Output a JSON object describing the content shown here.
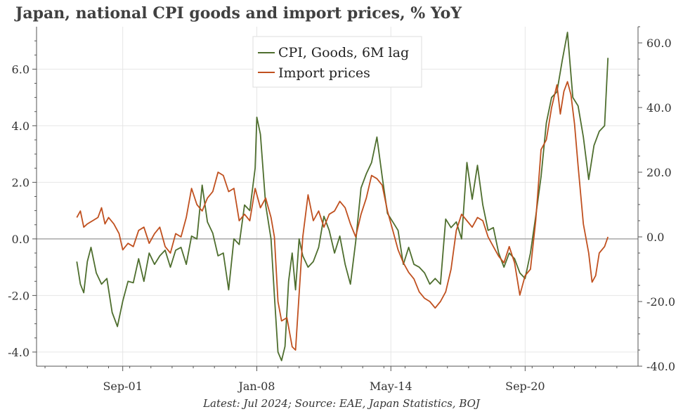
{
  "title": "Japan, national CPI goods and import prices, % YoY",
  "footer": "Latest: Jul 2024; Source: EAE, Japan Statistics, BOJ",
  "chart_data": {
    "type": "line",
    "title": "Japan, national CPI goods and import prices, % YoY",
    "x_start": 1999.5,
    "x_end": 2024.58,
    "xlim": [
      1997.6,
      2026.0
    ],
    "x_ticks": [
      {
        "value": 2001.67,
        "label": "Sep-01"
      },
      {
        "value": 2008.0,
        "label": "Jan-08"
      },
      {
        "value": 2014.33,
        "label": "May-14"
      },
      {
        "value": 2020.67,
        "label": "Sep-20"
      }
    ],
    "ylim_left": [
      -4.5,
      7.5
    ],
    "ylim_right": [
      -40.0,
      65.0
    ],
    "yticks_left": [
      {
        "value": 6.0,
        "label": "6.0"
      },
      {
        "value": 4.0,
        "label": "4.0"
      },
      {
        "value": 2.0,
        "label": "2.0"
      },
      {
        "value": 0.0,
        "label": "0.0"
      },
      {
        "value": -2.0,
        "label": "-2.0"
      },
      {
        "value": -4.0,
        "label": "-4.0"
      }
    ],
    "yticks_right": [
      {
        "value": 60.0,
        "label": "60.0"
      },
      {
        "value": 40.0,
        "label": "40.0"
      },
      {
        "value": 20.0,
        "label": "20.0"
      },
      {
        "value": 0.0,
        "label": "0.0"
      },
      {
        "value": -20.0,
        "label": "-20.0"
      },
      {
        "value": -40.0,
        "label": "-40.0"
      }
    ],
    "grid": true,
    "legend_position": "top-center",
    "series": [
      {
        "name": "CPI, Goods, 6M lag",
        "axis": "left",
        "color": "#4e6e2e",
        "points": [
          [
            1999.5,
            -0.8
          ],
          [
            1999.67,
            -1.6
          ],
          [
            1999.83,
            -1.9
          ],
          [
            2000.0,
            -0.8
          ],
          [
            2000.17,
            -0.3
          ],
          [
            2000.42,
            -1.2
          ],
          [
            2000.67,
            -1.6
          ],
          [
            2000.92,
            -1.4
          ],
          [
            2001.17,
            -2.6
          ],
          [
            2001.42,
            -3.1
          ],
          [
            2001.67,
            -2.2
          ],
          [
            2001.92,
            -1.5
          ],
          [
            2002.17,
            -1.55
          ],
          [
            2002.42,
            -0.7
          ],
          [
            2002.67,
            -1.5
          ],
          [
            2002.92,
            -0.5
          ],
          [
            2003.17,
            -0.9
          ],
          [
            2003.42,
            -0.6
          ],
          [
            2003.67,
            -0.4
          ],
          [
            2003.92,
            -1.0
          ],
          [
            2004.17,
            -0.4
          ],
          [
            2004.42,
            -0.3
          ],
          [
            2004.67,
            -0.9
          ],
          [
            2004.92,
            0.1
          ],
          [
            2005.17,
            0.0
          ],
          [
            2005.42,
            1.9
          ],
          [
            2005.67,
            0.6
          ],
          [
            2005.92,
            0.2
          ],
          [
            2006.17,
            -0.6
          ],
          [
            2006.42,
            -0.5
          ],
          [
            2006.67,
            -1.8
          ],
          [
            2006.92,
            0.0
          ],
          [
            2007.17,
            -0.2
          ],
          [
            2007.42,
            1.2
          ],
          [
            2007.67,
            1.0
          ],
          [
            2007.92,
            2.5
          ],
          [
            2008.0,
            4.3
          ],
          [
            2008.17,
            3.7
          ],
          [
            2008.42,
            1.2
          ],
          [
            2008.67,
            0.0
          ],
          [
            2008.83,
            -2.0
          ],
          [
            2009.0,
            -4.0
          ],
          [
            2009.17,
            -4.3
          ],
          [
            2009.33,
            -3.8
          ],
          [
            2009.5,
            -1.5
          ],
          [
            2009.67,
            -0.5
          ],
          [
            2009.83,
            -1.8
          ],
          [
            2010.0,
            0.0
          ],
          [
            2010.17,
            -0.6
          ],
          [
            2010.42,
            -1.0
          ],
          [
            2010.67,
            -0.8
          ],
          [
            2010.92,
            -0.3
          ],
          [
            2011.17,
            0.8
          ],
          [
            2011.42,
            0.3
          ],
          [
            2011.67,
            -0.5
          ],
          [
            2011.92,
            0.1
          ],
          [
            2012.17,
            -0.9
          ],
          [
            2012.42,
            -1.6
          ],
          [
            2012.67,
            -0.1
          ],
          [
            2012.92,
            1.8
          ],
          [
            2013.17,
            2.3
          ],
          [
            2013.42,
            2.7
          ],
          [
            2013.67,
            3.6
          ],
          [
            2013.92,
            2.2
          ],
          [
            2014.17,
            0.9
          ],
          [
            2014.42,
            0.6
          ],
          [
            2014.67,
            0.3
          ],
          [
            2014.92,
            -0.9
          ],
          [
            2015.17,
            -0.3
          ],
          [
            2015.42,
            -0.9
          ],
          [
            2015.67,
            -1.0
          ],
          [
            2015.92,
            -1.2
          ],
          [
            2016.17,
            -1.6
          ],
          [
            2016.42,
            -1.4
          ],
          [
            2016.67,
            -1.6
          ],
          [
            2016.92,
            0.7
          ],
          [
            2017.17,
            0.4
          ],
          [
            2017.42,
            0.6
          ],
          [
            2017.67,
            0.0
          ],
          [
            2017.92,
            2.7
          ],
          [
            2018.17,
            1.4
          ],
          [
            2018.42,
            2.6
          ],
          [
            2018.67,
            1.2
          ],
          [
            2018.92,
            0.3
          ],
          [
            2019.17,
            0.4
          ],
          [
            2019.42,
            -0.5
          ],
          [
            2019.67,
            -1.0
          ],
          [
            2019.92,
            -0.5
          ],
          [
            2020.17,
            -0.7
          ],
          [
            2020.42,
            -1.2
          ],
          [
            2020.67,
            -1.4
          ],
          [
            2020.92,
            -0.5
          ],
          [
            2021.17,
            0.8
          ],
          [
            2021.42,
            2.2
          ],
          [
            2021.67,
            4.1
          ],
          [
            2021.92,
            5.0
          ],
          [
            2022.17,
            5.2
          ],
          [
            2022.42,
            6.3
          ],
          [
            2022.67,
            7.3
          ],
          [
            2022.92,
            5.0
          ],
          [
            2023.17,
            4.7
          ],
          [
            2023.42,
            3.6
          ],
          [
            2023.67,
            2.1
          ],
          [
            2023.92,
            3.3
          ],
          [
            2024.17,
            3.8
          ],
          [
            2024.42,
            4.0
          ],
          [
            2024.58,
            6.4
          ]
        ]
      },
      {
        "name": "Import prices",
        "axis": "right",
        "color": "#c0501f",
        "points": [
          [
            1999.5,
            6.0
          ],
          [
            1999.67,
            8.0
          ],
          [
            1999.83,
            3.0
          ],
          [
            2000.0,
            4.0
          ],
          [
            2000.25,
            5.0
          ],
          [
            2000.5,
            6.0
          ],
          [
            2000.67,
            9.0
          ],
          [
            2000.83,
            4.0
          ],
          [
            2001.0,
            6.0
          ],
          [
            2001.25,
            4.0
          ],
          [
            2001.5,
            1.0
          ],
          [
            2001.67,
            -4.0
          ],
          [
            2001.92,
            -2.0
          ],
          [
            2002.17,
            -3.0
          ],
          [
            2002.42,
            2.0
          ],
          [
            2002.67,
            3.0
          ],
          [
            2002.92,
            -2.0
          ],
          [
            2003.17,
            1.0
          ],
          [
            2003.42,
            3.0
          ],
          [
            2003.67,
            -3.0
          ],
          [
            2003.92,
            -5.0
          ],
          [
            2004.17,
            1.0
          ],
          [
            2004.42,
            0.0
          ],
          [
            2004.67,
            6.0
          ],
          [
            2004.92,
            15.0
          ],
          [
            2005.17,
            10.0
          ],
          [
            2005.42,
            8.0
          ],
          [
            2005.67,
            12.0
          ],
          [
            2005.92,
            14.0
          ],
          [
            2006.17,
            20.0
          ],
          [
            2006.42,
            19.0
          ],
          [
            2006.67,
            14.0
          ],
          [
            2006.92,
            15.0
          ],
          [
            2007.17,
            5.0
          ],
          [
            2007.42,
            7.0
          ],
          [
            2007.67,
            5.0
          ],
          [
            2007.92,
            15.0
          ],
          [
            2008.17,
            9.0
          ],
          [
            2008.42,
            12.0
          ],
          [
            2008.67,
            6.0
          ],
          [
            2008.83,
            0.0
          ],
          [
            2009.0,
            -20.0
          ],
          [
            2009.17,
            -26.0
          ],
          [
            2009.42,
            -25.0
          ],
          [
            2009.67,
            -34.0
          ],
          [
            2009.83,
            -35.0
          ],
          [
            2010.17,
            0.0
          ],
          [
            2010.42,
            13.0
          ],
          [
            2010.67,
            5.0
          ],
          [
            2010.92,
            8.0
          ],
          [
            2011.17,
            3.0
          ],
          [
            2011.42,
            7.0
          ],
          [
            2011.67,
            8.0
          ],
          [
            2011.92,
            11.0
          ],
          [
            2012.17,
            9.0
          ],
          [
            2012.42,
            4.0
          ],
          [
            2012.67,
            0.0
          ],
          [
            2012.92,
            7.0
          ],
          [
            2013.17,
            12.0
          ],
          [
            2013.42,
            19.0
          ],
          [
            2013.67,
            18.0
          ],
          [
            2013.92,
            16.0
          ],
          [
            2014.17,
            8.0
          ],
          [
            2014.42,
            2.0
          ],
          [
            2014.67,
            -4.0
          ],
          [
            2014.92,
            -8.0
          ],
          [
            2015.17,
            -11.0
          ],
          [
            2015.42,
            -13.0
          ],
          [
            2015.67,
            -17.0
          ],
          [
            2015.92,
            -19.0
          ],
          [
            2016.17,
            -20.0
          ],
          [
            2016.42,
            -22.0
          ],
          [
            2016.67,
            -20.0
          ],
          [
            2016.92,
            -17.0
          ],
          [
            2017.17,
            -10.0
          ],
          [
            2017.42,
            2.0
          ],
          [
            2017.67,
            7.0
          ],
          [
            2017.92,
            5.0
          ],
          [
            2018.17,
            3.0
          ],
          [
            2018.42,
            6.0
          ],
          [
            2018.67,
            5.0
          ],
          [
            2018.92,
            0.0
          ],
          [
            2019.17,
            -3.0
          ],
          [
            2019.42,
            -6.0
          ],
          [
            2019.67,
            -8.0
          ],
          [
            2019.92,
            -3.0
          ],
          [
            2020.17,
            -8.0
          ],
          [
            2020.42,
            -18.0
          ],
          [
            2020.67,
            -12.0
          ],
          [
            2020.92,
            -10.0
          ],
          [
            2021.17,
            5.0
          ],
          [
            2021.42,
            27.0
          ],
          [
            2021.67,
            30.0
          ],
          [
            2021.92,
            40.0
          ],
          [
            2022.17,
            47.0
          ],
          [
            2022.33,
            38.0
          ],
          [
            2022.5,
            45.0
          ],
          [
            2022.67,
            48.0
          ],
          [
            2022.83,
            44.0
          ],
          [
            2023.0,
            35.0
          ],
          [
            2023.17,
            22.0
          ],
          [
            2023.42,
            4.0
          ],
          [
            2023.67,
            -5.0
          ],
          [
            2023.83,
            -14.0
          ],
          [
            2024.0,
            -12.0
          ],
          [
            2024.17,
            -5.0
          ],
          [
            2024.42,
            -3.0
          ],
          [
            2024.58,
            0.0
          ]
        ]
      }
    ]
  }
}
